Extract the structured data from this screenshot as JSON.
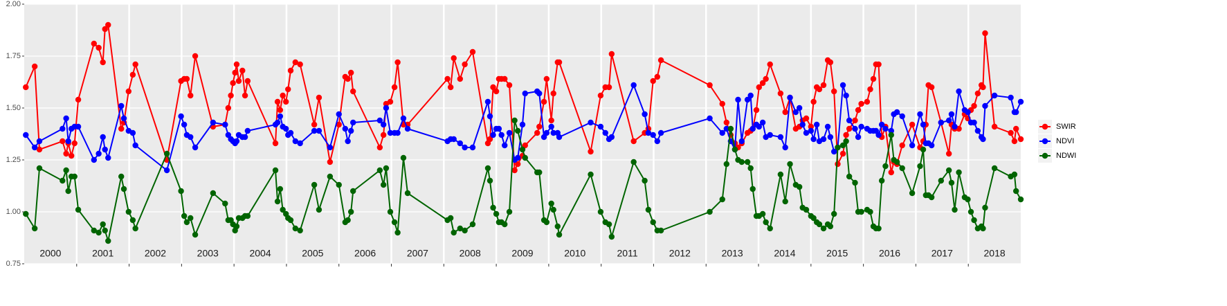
{
  "chart_data": {
    "type": "line",
    "xlim": [
      2000,
      2019
    ],
    "xticks": [
      2001,
      2002,
      2003,
      2004,
      2005,
      2006,
      2007,
      2008,
      2009,
      2010,
      2011,
      2012,
      2013,
      2014,
      2015,
      2016,
      2017,
      2018
    ],
    "year_labels": [
      "2000",
      "2001",
      "2002",
      "2003",
      "2004",
      "2005",
      "2006",
      "2007",
      "2008",
      "2009",
      "2010",
      "2011",
      "2012",
      "2013",
      "2014",
      "2015",
      "2016",
      "2017",
      "2018"
    ],
    "ylim": [
      0.75,
      2
    ],
    "yticks": [
      0.75,
      {
        "value": 1,
        "label": "1.00"
      },
      1.25,
      {
        "value": 1.5,
        "label": "1.50"
      },
      1.75,
      {
        "value": 2,
        "label": "2.00"
      }
    ],
    "grid": true,
    "legend_position": "right",
    "x": [
      2000.03,
      2000.2,
      2000.29,
      2000.73,
      2000.8,
      2000.84,
      2000.9,
      2000.96,
      2001.03,
      2001.33,
      2001.42,
      2001.5,
      2001.54,
      2001.6,
      2001.85,
      2001.9,
      2001.99,
      2002.07,
      2002.12,
      2002.72,
      2002.99,
      2003.05,
      2003.1,
      2003.17,
      2003.26,
      2003.6,
      2003.83,
      2003.89,
      2003.94,
      2003.98,
      2004.02,
      2004.05,
      2004.09,
      2004.16,
      2004.21,
      2004.26,
      2004.79,
      2004.83,
      2004.88,
      2004.93,
      2004.99,
      2005.03,
      2005.08,
      2005.17,
      2005.26,
      2005.53,
      2005.62,
      2005.83,
      2006,
      2006.12,
      2006.17,
      2006.23,
      2006.27,
      2006.78,
      2006.85,
      2006.9,
      2006.98,
      2007.06,
      2007.12,
      2007.23,
      2007.31,
      2008.07,
      2008.13,
      2008.19,
      2008.31,
      2008.4,
      2008.55,
      2008.84,
      2008.88,
      2008.94,
      2009,
      2009.05,
      2009.1,
      2009.16,
      2009.25,
      2009.35,
      2009.41,
      2009.5,
      2009.55,
      2009.78,
      2009.82,
      2009.91,
      2009.96,
      2010.05,
      2010.09,
      2010.17,
      2010.2,
      2010.8,
      2010.99,
      2011.08,
      2011.15,
      2011.2,
      2011.62,
      2011.83,
      2011.9,
      2011.99,
      2012.07,
      2012.14,
      2013.07,
      2013.31,
      2013.39,
      2013.47,
      2013.55,
      2013.61,
      2013.68,
      2013.79,
      2013.85,
      2013.89,
      2013.96,
      2014.01,
      2014.08,
      2014.14,
      2014.22,
      2014.42,
      2014.51,
      2014.6,
      2014.71,
      2014.78,
      2014.84,
      2014.91,
      2015,
      2015.05,
      2015.11,
      2015.16,
      2015.24,
      2015.32,
      2015.37,
      2015.44,
      2015.51,
      2015.61,
      2015.67,
      2015.73,
      2015.84,
      2015.9,
      2015.96,
      2016.07,
      2016.13,
      2016.19,
      2016.24,
      2016.29,
      2016.35,
      2016.42,
      2016.53,
      2016.58,
      2016.64,
      2016.74,
      2016.93,
      2017.08,
      2017.14,
      2017.19,
      2017.24,
      2017.3,
      2017.48,
      2017.63,
      2017.68,
      2017.74,
      2017.82,
      2017.93,
      2017.99,
      2018.05,
      2018.11,
      2018.18,
      2018.25,
      2018.28,
      2018.32,
      2018.5,
      2018.81,
      2018.88,
      2018.91,
      2019
    ],
    "series": [
      {
        "name": "SWIR",
        "color": "#ff0000",
        "values": [
          1.6,
          1.7,
          1.3,
          1.34,
          1.28,
          1.33,
          1.27,
          1.33,
          1.54,
          1.81,
          1.79,
          1.72,
          1.88,
          1.9,
          1.4,
          1.43,
          1.58,
          1.66,
          1.71,
          1.25,
          1.63,
          1.64,
          1.64,
          1.56,
          1.75,
          1.41,
          1.42,
          1.5,
          1.56,
          1.62,
          1.67,
          1.71,
          1.63,
          1.68,
          1.56,
          1.63,
          1.33,
          1.53,
          1.49,
          1.56,
          1.53,
          1.59,
          1.68,
          1.72,
          1.71,
          1.42,
          1.55,
          1.24,
          1.42,
          1.65,
          1.64,
          1.67,
          1.58,
          1.31,
          1.37,
          1.52,
          1.53,
          1.6,
          1.72,
          1.42,
          1.42,
          1.64,
          1.6,
          1.74,
          1.64,
          1.71,
          1.77,
          1.33,
          1.35,
          1.6,
          1.58,
          1.64,
          1.64,
          1.64,
          1.61,
          1.2,
          1.23,
          1.27,
          1.32,
          1.38,
          1.41,
          1.53,
          1.64,
          1.44,
          1.57,
          1.72,
          1.72,
          1.29,
          1.56,
          1.6,
          1.6,
          1.76,
          1.34,
          1.38,
          1.4,
          1.63,
          1.65,
          1.73,
          1.61,
          1.52,
          1.43,
          1.37,
          1.33,
          1.31,
          1.33,
          1.38,
          1.39,
          1.4,
          1.49,
          1.6,
          1.62,
          1.64,
          1.71,
          1.57,
          1.48,
          1.55,
          1.4,
          1.41,
          1.44,
          1.45,
          1.41,
          1.53,
          1.6,
          1.59,
          1.61,
          1.73,
          1.72,
          1.58,
          1.23,
          1.28,
          1.37,
          1.4,
          1.44,
          1.49,
          1.52,
          1.53,
          1.59,
          1.64,
          1.71,
          1.71,
          1.36,
          1.41,
          1.19,
          1.24,
          1.23,
          1.32,
          1.42,
          1.31,
          1.34,
          1.42,
          1.61,
          1.6,
          1.43,
          1.28,
          1.42,
          1.4,
          1.4,
          1.47,
          1.45,
          1.49,
          1.51,
          1.57,
          1.61,
          1.6,
          1.86,
          1.41,
          1.38,
          1.34,
          1.4,
          1.35
        ]
      },
      {
        "name": "NDVI",
        "color": "#0000ff",
        "values": [
          1.37,
          1.31,
          1.34,
          1.4,
          1.45,
          1.34,
          1.4,
          1.41,
          1.41,
          1.25,
          1.28,
          1.36,
          1.3,
          1.26,
          1.51,
          1.45,
          1.39,
          1.38,
          1.32,
          1.2,
          1.46,
          1.42,
          1.37,
          1.36,
          1.31,
          1.43,
          1.42,
          1.37,
          1.35,
          1.34,
          1.33,
          1.34,
          1.37,
          1.36,
          1.36,
          1.39,
          1.42,
          1.43,
          1.46,
          1.41,
          1.4,
          1.37,
          1.38,
          1.34,
          1.33,
          1.39,
          1.39,
          1.31,
          1.47,
          1.4,
          1.34,
          1.39,
          1.43,
          1.44,
          1.42,
          1.5,
          1.38,
          1.38,
          1.38,
          1.45,
          1.4,
          1.34,
          1.35,
          1.35,
          1.33,
          1.31,
          1.31,
          1.53,
          1.46,
          1.37,
          1.4,
          1.4,
          1.37,
          1.32,
          1.38,
          1.25,
          1.26,
          1.42,
          1.57,
          1.58,
          1.57,
          1.36,
          1.38,
          1.41,
          1.38,
          1.38,
          1.36,
          1.43,
          1.41,
          1.38,
          1.35,
          1.36,
          1.61,
          1.47,
          1.38,
          1.37,
          1.34,
          1.38,
          1.45,
          1.38,
          1.4,
          1.34,
          1.3,
          1.54,
          1.34,
          1.54,
          1.56,
          1.4,
          1.42,
          1.41,
          1.43,
          1.36,
          1.37,
          1.36,
          1.31,
          1.55,
          1.48,
          1.5,
          1.42,
          1.38,
          1.39,
          1.35,
          1.42,
          1.34,
          1.35,
          1.41,
          1.36,
          1.29,
          1.31,
          1.61,
          1.56,
          1.44,
          1.4,
          1.36,
          1.41,
          1.4,
          1.39,
          1.39,
          1.39,
          1.37,
          1.42,
          1.4,
          1.39,
          1.47,
          1.48,
          1.46,
          1.32,
          1.47,
          1.42,
          1.33,
          1.33,
          1.32,
          1.43,
          1.44,
          1.47,
          1.41,
          1.58,
          1.49,
          1.48,
          1.43,
          1.43,
          1.39,
          1.36,
          1.35,
          1.51,
          1.56,
          1.55,
          1.48,
          1.48,
          1.53
        ]
      },
      {
        "name": "NDWI",
        "color": "#006400",
        "values": [
          0.99,
          0.92,
          1.21,
          1.15,
          1.2,
          1.1,
          1.17,
          1.17,
          1.01,
          0.91,
          0.9,
          0.94,
          0.91,
          0.86,
          1.17,
          1.11,
          1.0,
          0.96,
          0.92,
          1.28,
          1.1,
          0.98,
          0.95,
          0.97,
          0.89,
          1.09,
          1.04,
          0.96,
          0.96,
          0.94,
          0.91,
          0.93,
          0.97,
          0.97,
          0.98,
          0.98,
          1.2,
          1.05,
          1.11,
          1.01,
          0.99,
          0.97,
          0.96,
          0.92,
          0.91,
          1.13,
          1.01,
          1.17,
          1.13,
          0.95,
          0.96,
          1.0,
          1.1,
          1.2,
          1.13,
          1.21,
          1.0,
          0.95,
          0.9,
          1.26,
          1.09,
          0.96,
          0.97,
          0.9,
          0.92,
          0.91,
          0.94,
          1.21,
          1.15,
          1.02,
          0.99,
          0.95,
          0.95,
          0.94,
          1.0,
          1.44,
          1.39,
          1.3,
          1.26,
          1.19,
          1.19,
          0.96,
          0.95,
          1.04,
          1.01,
          0.93,
          0.89,
          1.18,
          1.0,
          0.95,
          0.94,
          0.88,
          1.24,
          1.15,
          1.01,
          0.95,
          0.91,
          0.91,
          1.0,
          1.06,
          1.23,
          1.4,
          1.3,
          1.25,
          1.24,
          1.24,
          1.21,
          1.11,
          0.98,
          0.98,
          0.99,
          0.95,
          0.92,
          1.18,
          1.05,
          1.23,
          1.13,
          1.12,
          1.02,
          1.01,
          0.98,
          0.97,
          0.95,
          0.94,
          0.92,
          0.94,
          0.93,
          0.99,
          1.31,
          1.32,
          1.34,
          1.17,
          1.14,
          1.0,
          1.0,
          1.01,
          1.0,
          0.93,
          0.92,
          0.92,
          1.15,
          1.22,
          1.37,
          1.25,
          1.24,
          1.21,
          1.09,
          1.22,
          1.3,
          1.08,
          1.08,
          1.07,
          1.15,
          1.2,
          1.14,
          1.01,
          1.19,
          1.07,
          1.06,
          1.0,
          0.96,
          0.92,
          0.93,
          0.92,
          1.02,
          1.21,
          1.17,
          1.18,
          1.1,
          1.06
        ]
      }
    ]
  }
}
